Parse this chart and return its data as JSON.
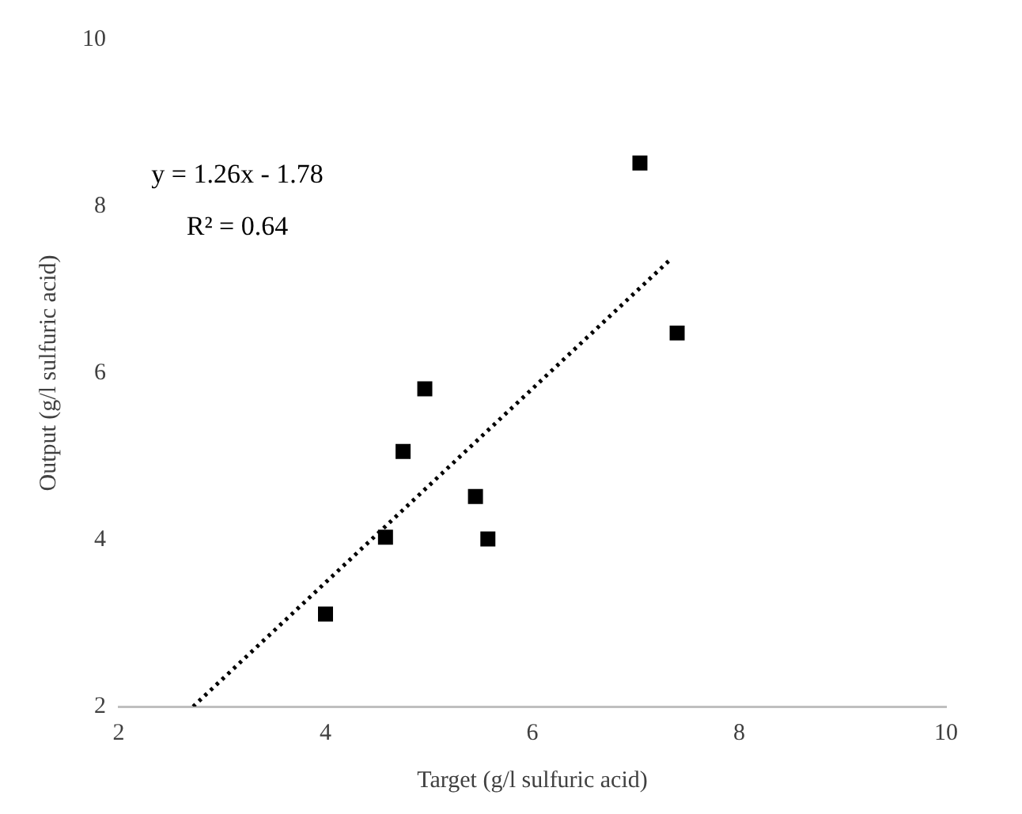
{
  "chart_data": {
    "type": "scatter",
    "xlabel": "Target (g/l sulfuric acid)",
    "ylabel": "Output (g/l sulfuric acid)",
    "x": [
      7.04,
      7.4,
      4.96,
      4.75,
      5.45,
      4.58,
      5.57,
      4.0
    ],
    "series": [
      {
        "color": "#000000",
        "marker": "square",
        "values": [
          8.52,
          6.48,
          5.81,
          5.06,
          4.52,
          4.03,
          4.01,
          3.11
        ]
      },
      {
        "type": "line",
        "color": "#000000",
        "line_style": "dotted",
        "marker": "none",
        "x": [
          2.72,
          7.35
        ],
        "values": [
          2.0,
          7.38
        ]
      }
    ],
    "xlim": [
      2,
      10
    ],
    "ylim": [
      2,
      10
    ],
    "xticks": [
      2,
      4,
      6,
      8,
      10
    ],
    "yticks": [
      2,
      4,
      6,
      8,
      10
    ],
    "grid": false,
    "legend": false,
    "annotations": [
      "y = 1.26x - 1.78",
      "R² = 0.64"
    ]
  }
}
